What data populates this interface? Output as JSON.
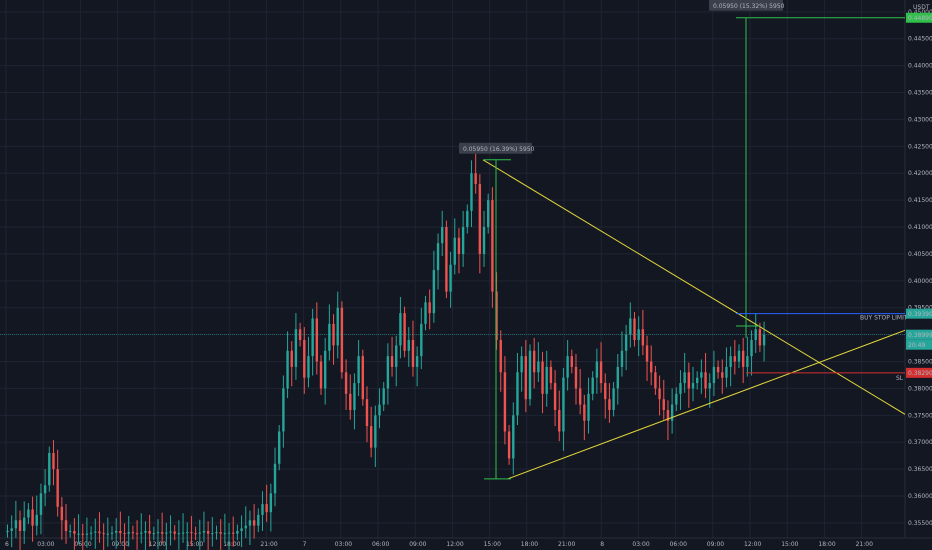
{
  "chart_data": {
    "type": "candlestick",
    "currency": "USDT",
    "colors": {
      "background": "#131722",
      "up": "#26a69a",
      "down": "#ef5350",
      "trendline": "#e1d53a",
      "measure": "#2fbf4a",
      "buy_stop": "#2962ff",
      "sl": "#d32f2f",
      "current": "#26a69a",
      "text": "#b2b5be"
    },
    "x_tick_labels": [
      "6",
      "03:00",
      "06:00",
      "09:00",
      "12:00",
      "15:00",
      "18:00",
      "21:00",
      "7",
      "03:00",
      "06:00",
      "09:00",
      "12:00",
      "15:00",
      "18:00",
      "21:00",
      "8",
      "03:00",
      "06:00",
      "09:00",
      "12:00",
      "15:00",
      "18:00",
      "21:00"
    ],
    "y_ticks": [
      "0.45000",
      "0.44500",
      "0.44000",
      "0.43500",
      "0.43000",
      "0.42500",
      "0.42000",
      "0.41500",
      "0.41000",
      "0.40500",
      "0.40000",
      "0.39500",
      "0.39000",
      "0.38500",
      "0.38000",
      "0.37500",
      "0.37000",
      "0.36500",
      "0.36000",
      "0.35500"
    ],
    "ylim": [
      0.3522,
      0.4522
    ],
    "price_labels": {
      "top_target": "0.44890",
      "buy_stop": "0.39390",
      "current": "0.38999",
      "countdown": "20:49",
      "sl": "0.38290"
    },
    "annotations": {
      "measure_1": "0.05950 (16.39%) 5950",
      "measure_2": "0.05950 (15.32%) 5950",
      "buy_stop_label": "BUY STOP LIMIT",
      "sl_label": "SL"
    },
    "candles": {
      "t_start": 0,
      "note_units": "bar index, 1 bar = 1 hour",
      "closes": [
        0.3535,
        0.354,
        0.3555,
        0.3535,
        0.356,
        0.3575,
        0.3545,
        0.3565,
        0.3605,
        0.362,
        0.368,
        0.365,
        0.358,
        0.3555,
        0.3535,
        0.3535,
        0.353,
        0.353,
        0.3528,
        0.353,
        0.3532,
        0.3534,
        0.3531,
        0.353,
        0.353,
        0.3532,
        0.3535,
        0.3531,
        0.353,
        0.3533,
        0.3531,
        0.353,
        0.3532,
        0.3535,
        0.353,
        0.3531,
        0.3533,
        0.353,
        0.3532,
        0.3534,
        0.353,
        0.3531,
        0.3532,
        0.3533,
        0.3531,
        0.353,
        0.3532,
        0.3535,
        0.353,
        0.3531,
        0.3533,
        0.353,
        0.3531,
        0.3532,
        0.353,
        0.3535,
        0.354,
        0.3545,
        0.3555,
        0.3545,
        0.3565,
        0.3585,
        0.357,
        0.3605,
        0.366,
        0.372,
        0.38,
        0.387,
        0.384,
        0.391,
        0.389,
        0.382,
        0.386,
        0.393,
        0.385,
        0.38,
        0.387,
        0.392,
        0.388,
        0.395,
        0.383,
        0.379,
        0.376,
        0.381,
        0.386,
        0.378,
        0.373,
        0.369,
        0.375,
        0.377,
        0.38,
        0.386,
        0.384,
        0.388,
        0.394,
        0.387,
        0.389,
        0.384,
        0.386,
        0.392,
        0.396,
        0.394,
        0.402,
        0.407,
        0.41,
        0.398,
        0.403,
        0.408,
        0.405,
        0.41,
        0.413,
        0.42,
        0.418,
        0.405,
        0.41,
        0.415,
        0.398,
        0.389,
        0.383,
        0.372,
        0.367,
        0.375,
        0.383,
        0.386,
        0.378,
        0.387,
        0.383,
        0.385,
        0.379,
        0.384,
        0.381,
        0.376,
        0.372,
        0.382,
        0.386,
        0.384,
        0.38,
        0.377,
        0.374,
        0.379,
        0.382,
        0.385,
        0.381,
        0.378,
        0.376,
        0.38,
        0.384,
        0.387,
        0.39,
        0.393,
        0.389,
        0.391,
        0.388,
        0.385,
        0.383,
        0.38,
        0.378,
        0.376,
        0.374,
        0.377,
        0.379,
        0.381,
        0.383,
        0.38,
        0.381,
        0.382,
        0.383,
        0.38,
        0.381,
        0.384,
        0.383,
        0.382,
        0.384,
        0.386,
        0.385,
        0.387,
        0.384,
        0.386,
        0.389,
        0.391,
        0.388,
        0.39,
        0.389,
        0.387,
        0.388,
        0.39
      ]
    }
  }
}
